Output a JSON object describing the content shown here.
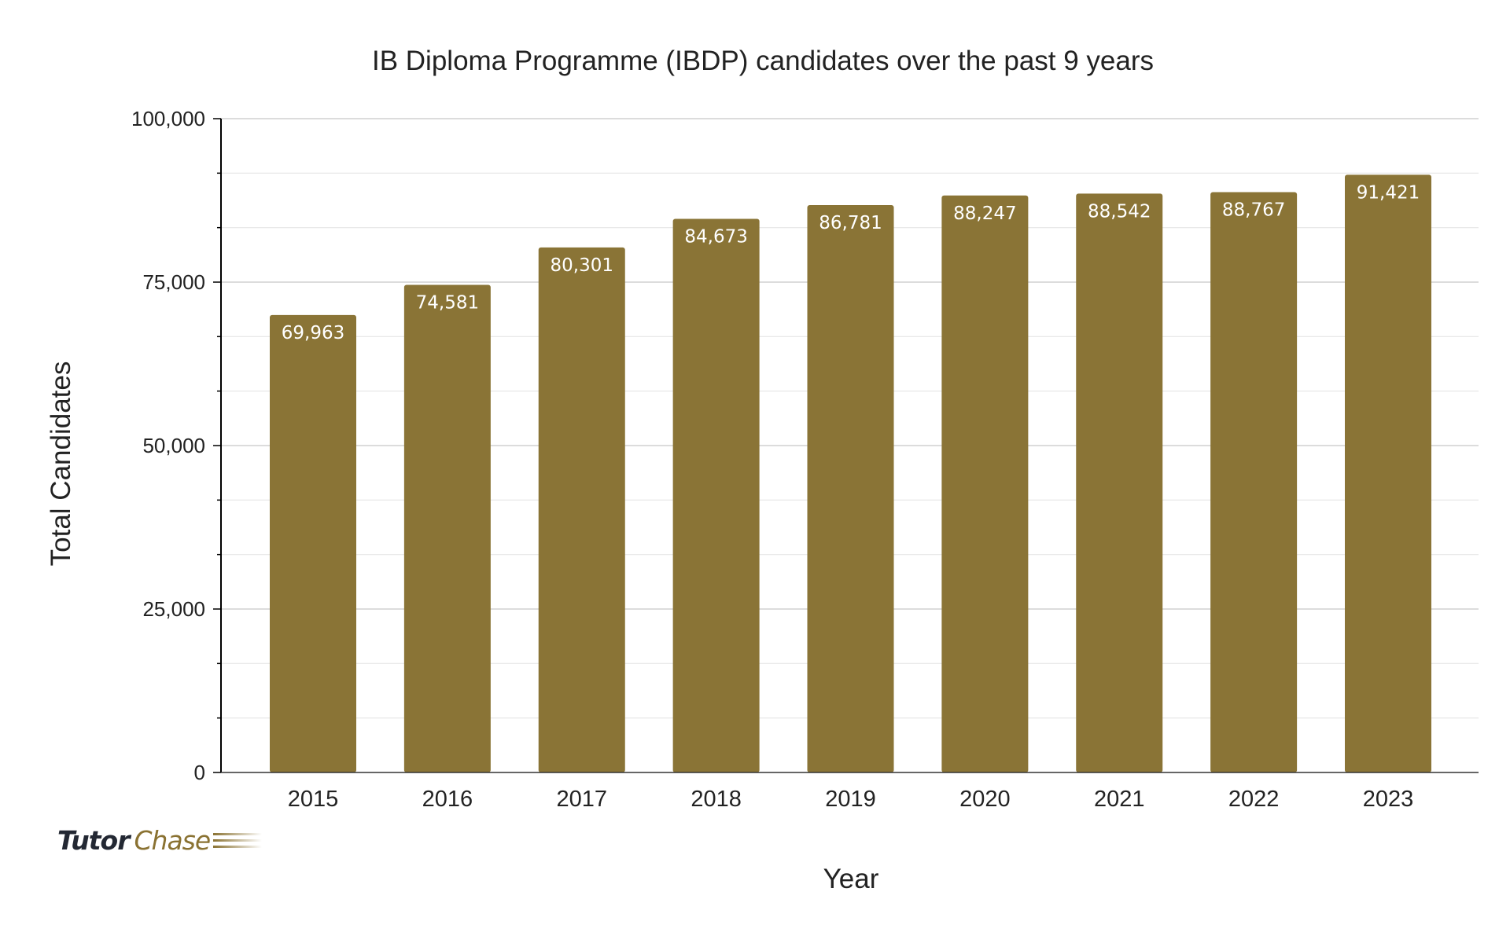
{
  "chart_data": {
    "type": "bar",
    "title": "IB Diploma Programme (IBDP) candidates over the past 9 years",
    "xlabel": "Year",
    "ylabel": "Total Candidates",
    "categories": [
      "2015",
      "2016",
      "2017",
      "2018",
      "2019",
      "2020",
      "2021",
      "2022",
      "2023"
    ],
    "values": [
      69963,
      74581,
      80301,
      84673,
      86781,
      88247,
      88542,
      88767,
      91421
    ],
    "data_labels": [
      "69,963",
      "74,581",
      "80,301",
      "84,673",
      "86,781",
      "88,247",
      "88,542",
      "88,767",
      "91,421"
    ],
    "ylim": [
      0,
      100000
    ],
    "yticks": [
      0,
      25000,
      50000,
      75000,
      100000
    ],
    "ytick_labels": [
      "0",
      "25,000",
      "50,000",
      "75,000",
      "100,000"
    ],
    "grid": true,
    "bar_color": "#8a7436"
  },
  "logo": {
    "part1": "Tutor",
    "part2": "Chase"
  }
}
